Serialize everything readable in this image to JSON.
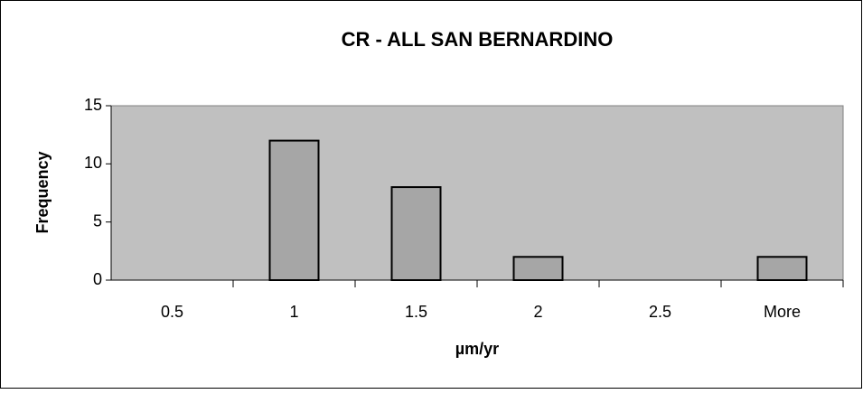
{
  "chart_data": {
    "type": "bar",
    "title": "CR - ALL SAN BERNARDINO",
    "x_label": "µm/yr",
    "y_label": "Frequency",
    "categories": [
      "0.5",
      "1",
      "1.5",
      "2",
      "2.5",
      "More"
    ],
    "values": [
      0,
      12,
      8,
      2,
      0,
      2
    ],
    "color": "#a6a6a6",
    "plot_background": "#c0c0c0",
    "ylim": [
      0,
      15
    ],
    "yticks": [
      0,
      5,
      10,
      15
    ],
    "grid": false
  }
}
